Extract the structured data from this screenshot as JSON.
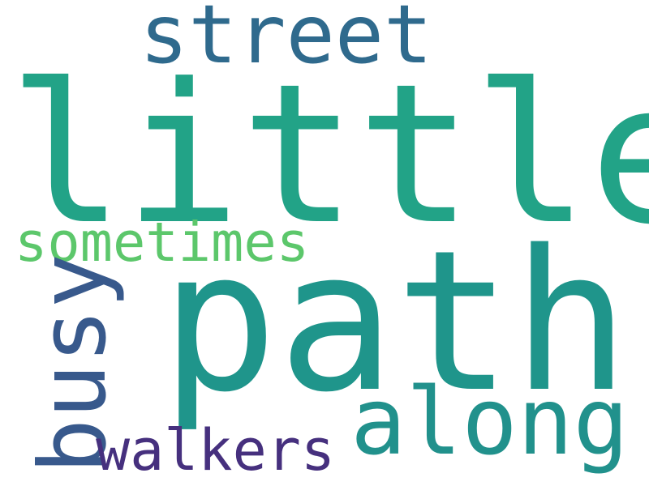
{
  "words": {
    "little": "little",
    "path": "path",
    "street": "street",
    "sometimes": "sometimes",
    "busy": "busy",
    "along": "along",
    "walkers": "walkers"
  },
  "colors": {
    "little": "#22a387",
    "path": "#1f958b",
    "street": "#2f6a8d",
    "sometimes": "#5cc76b",
    "busy": "#38598c",
    "along": "#21918c",
    "walkers": "#46307e",
    "background": "#ffffff"
  }
}
